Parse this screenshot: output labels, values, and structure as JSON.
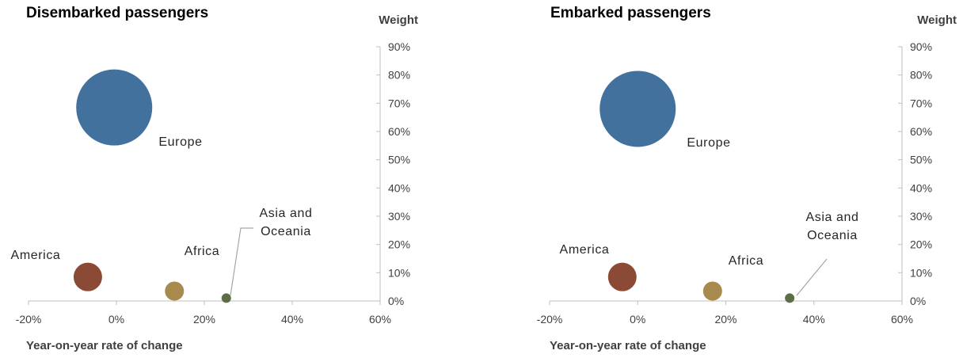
{
  "chart_data": [
    {
      "type": "scatter",
      "title": "Disembarked passengers",
      "xlabel": "Year-on-year rate of change",
      "ylabel": "Weight",
      "xlim": [
        -20,
        60
      ],
      "ylim": [
        0,
        90
      ],
      "x_ticks": [
        "-20%",
        "0%",
        "20%",
        "40%",
        "60%"
      ],
      "y_ticks": [
        "0%",
        "10%",
        "20%",
        "30%",
        "40%",
        "50%",
        "60%",
        "70%",
        "80%",
        "90%"
      ],
      "grid": false,
      "points": [
        {
          "label": "Europe",
          "label_lines": [
            "Europe"
          ],
          "x": -0.5,
          "y": 68.5,
          "color": "#41719c"
        },
        {
          "label": "America",
          "label_lines": [
            "America"
          ],
          "x": -6.5,
          "y": 8.5,
          "color": "#8b4a35"
        },
        {
          "label": "Africa",
          "label_lines": [
            "Africa"
          ],
          "x": 13.2,
          "y": 3.5,
          "color": "#a88a4e"
        },
        {
          "label": "Asia and Oceania",
          "label_lines": [
            "Asia and",
            "Oceania"
          ],
          "x": 25,
          "y": 1,
          "color": "#5b6e48"
        }
      ]
    },
    {
      "type": "scatter",
      "title": "Embarked passengers",
      "xlabel": "Year-on-year rate of change",
      "ylabel": "Weight",
      "xlim": [
        -20,
        60
      ],
      "ylim": [
        0,
        90
      ],
      "x_ticks": [
        "-20%",
        "0%",
        "20%",
        "40%",
        "60%"
      ],
      "y_ticks": [
        "0%",
        "10%",
        "20%",
        "30%",
        "40%",
        "50%",
        "60%",
        "70%",
        "80%",
        "90%"
      ],
      "grid": false,
      "points": [
        {
          "label": "Europe",
          "label_lines": [
            "Europe"
          ],
          "x": 0,
          "y": 68,
          "color": "#41719c"
        },
        {
          "label": "America",
          "label_lines": [
            "America"
          ],
          "x": -3.5,
          "y": 8.5,
          "color": "#8b4a35"
        },
        {
          "label": "Africa",
          "label_lines": [
            "Africa"
          ],
          "x": 17,
          "y": 3.5,
          "color": "#a88a4e"
        },
        {
          "label": "Asia and Oceania",
          "label_lines": [
            "Asia and",
            "Oceania"
          ],
          "x": 34.5,
          "y": 1,
          "color": "#5b6e48"
        }
      ]
    }
  ]
}
